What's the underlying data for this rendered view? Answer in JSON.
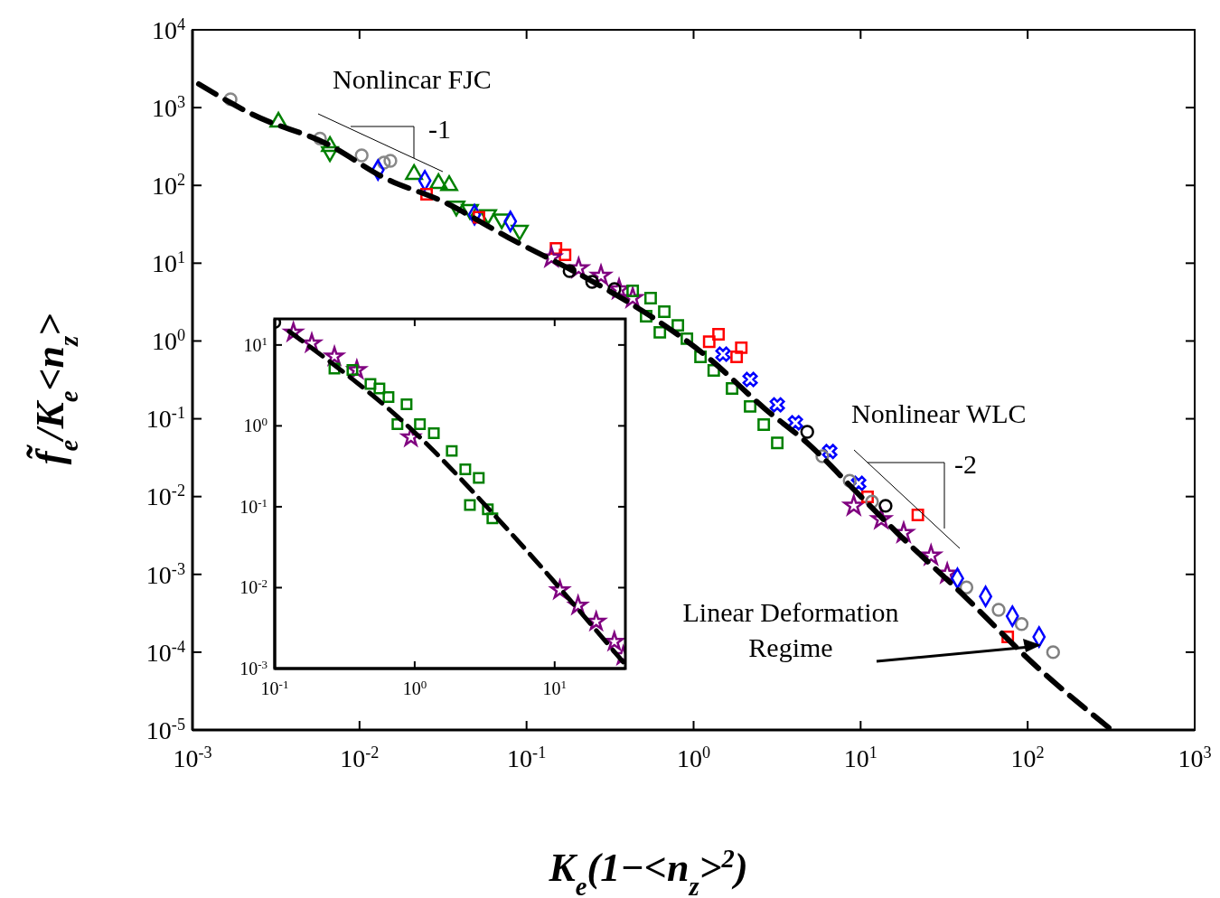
{
  "chart_data": [
    {
      "type": "scatter",
      "log": "xy",
      "xlabel": "K$_{e}$(1−<n$_{z}$>$^{2}$)",
      "ylabel": "f̃$_{e}$/K$_{e}$<n$_{z}$>",
      "xlim": [
        0.001,
        1000
      ],
      "ylim": [
        1e-05,
        10000
      ],
      "xticks": [
        {
          "value": 0.001,
          "label": "10$^{-3}$"
        },
        {
          "value": 0.01,
          "label": "10$^{-2}$"
        },
        {
          "value": 0.1,
          "label": "10$^{-1}$"
        },
        {
          "value": 1,
          "label": "10$^{0}$"
        },
        {
          "value": 10,
          "label": "10$^{1}$"
        },
        {
          "value": 100,
          "label": "10$^{2}$"
        },
        {
          "value": 1000,
          "label": "10$^{3}$"
        }
      ],
      "yticks": [
        {
          "value": 1e-05,
          "label": "10$^{-5}$"
        },
        {
          "value": 0.0001,
          "label": "10$^{-4}$"
        },
        {
          "value": 0.001,
          "label": "10$^{-3}$"
        },
        {
          "value": 0.01,
          "label": "10$^{-2}$"
        },
        {
          "value": 0.1,
          "label": "10$^{-1}$"
        },
        {
          "value": 1,
          "label": "10$^{0}$"
        },
        {
          "value": 10,
          "label": "10$^{1}$"
        },
        {
          "value": 100,
          "label": "10$^{2}$"
        },
        {
          "value": 1000,
          "label": "10$^{3}$"
        },
        {
          "value": 10000,
          "label": "10$^{4}$"
        }
      ],
      "annotations": [
        "Nonlincar FJC",
        "-1",
        "Nonlinear WLC",
        "-2",
        "Linear Deformation Regime"
      ],
      "series": [
        {
          "color": "#888888",
          "marker": "circle",
          "x": [
            0.00169,
            0.0058,
            0.0103,
            0.014,
            0.0153
          ],
          "values": [
            1280,
            400,
            243,
            196,
            207
          ]
        },
        {
          "color": "#008000",
          "marker": "triangle",
          "x": [
            0.00327,
            0.00665,
            0.0212,
            0.0297,
            0.0344
          ],
          "values": [
            653,
            318,
            139,
            106,
            100
          ]
        },
        {
          "color": "#008000",
          "marker": "triangle-down",
          "x": [
            0.00665,
            0.038,
            0.0458,
            0.0588,
            0.071,
            0.091
          ],
          "values": [
            270,
            54,
            49,
            42,
            37,
            26.4
          ]
        },
        {
          "color": "#0000ff",
          "marker": "diamond",
          "x": [
            0.0129,
            0.0246,
            0.0488,
            0.08
          ],
          "values": [
            158,
            115,
            42,
            34.5
          ]
        },
        {
          "color": "#ff0000",
          "marker": "square",
          "x": [
            0.0252,
            0.0519,
            0.15,
            0.17,
            1.41,
            1.93
          ],
          "values": [
            77,
            39,
            15.5,
            12.8,
            1.22,
            0.82
          ]
        },
        {
          "color": "#800080",
          "marker": "star",
          "x": [
            0.141,
            0.205,
            0.279,
            0.358,
            0.432,
            9.1,
            13.3,
            18.1,
            26.4,
            33
          ],
          "values": [
            11.8,
            8.6,
            6.9,
            4.6,
            3.56,
            0.0076,
            0.0051,
            0.0034,
            0.00174,
            0.00102
          ]
        },
        {
          "color": "#000000",
          "marker": "circle",
          "x": [
            0.181,
            0.247,
            0.336,
            4.79,
            14.1
          ],
          "values": [
            7.9,
            5.75,
            4.65,
            0.068,
            0.0076
          ]
        },
        {
          "color": "#008000",
          "marker": "square",
          "x": [
            0.432,
            0.553,
            0.668,
            0.805,
            0.912,
            1.1,
            1.32,
            1.7,
            2.18,
            2.63,
            3.17,
            0.52,
            0.628
          ],
          "values": [
            4.4,
            3.55,
            2.38,
            1.59,
            1.07,
            0.625,
            0.418,
            0.245,
            0.144,
            0.084,
            0.049,
            2.08,
            1.29
          ]
        },
        {
          "color": "#0000ff",
          "marker": "cross",
          "x": [
            1.5,
            2.18,
            3.17,
            4.07,
            6.53,
            9.73
          ],
          "values": [
            0.676,
            0.32,
            0.151,
            0.089,
            0.038,
            0.0148
          ]
        },
        {
          "color": "#ff0000",
          "marker": "square",
          "x": [
            1.24,
            1.81,
            11,
            22,
            76
          ],
          "values": [
            0.98,
            0.625,
            0.0099,
            0.0058,
            0.000157
          ]
        },
        {
          "color": "#808080",
          "marker": "circle",
          "x": [
            5.9,
            8.6,
            11.7,
            43,
            67,
            92,
            142
          ],
          "values": [
            0.033,
            0.016,
            0.0086,
            0.00068,
            0.00035,
            0.00023,
            0.0001
          ]
        },
        {
          "color": "#0000ff",
          "marker": "diamond",
          "x": [
            38,
            56,
            81,
            117
          ],
          "values": [
            0.00089,
            0.00052,
            0.00029,
            0.000157
          ]
        },
        {
          "type": "line",
          "color": "#000000",
          "marker": "none",
          "line_style": "dashed",
          "x": [
            0.00109,
            0.00231,
            0.0065,
            0.0142,
            0.0316,
            0.078,
            0.24,
            0.554,
            1.17,
            2.7,
            4.79,
            9.73,
            16.6,
            36.9,
            117,
            318
          ],
          "values": [
            2010,
            809,
            335,
            124,
            62,
            21.3,
            6.07,
            2.08,
            0.66,
            0.132,
            0.049,
            0.0107,
            0.0034,
            0.00068,
            6.1e-05,
            1e-05
          ]
        }
      ]
    },
    {
      "type": "scatter",
      "log": "xy",
      "xlim": [
        0.1,
        32
      ],
      "ylim": [
        0.001,
        21
      ],
      "xticks": [
        {
          "value": 0.1,
          "label": "10$^{-1}$"
        },
        {
          "value": 1,
          "label": "10$^{0}$"
        },
        {
          "value": 10,
          "label": "10$^{1}$"
        }
      ],
      "yticks": [
        {
          "value": 0.001,
          "label": "10$^{-3}$"
        },
        {
          "value": 0.01,
          "label": "10$^{-2}$"
        },
        {
          "value": 0.1,
          "label": "10$^{-1}$"
        },
        {
          "value": 1,
          "label": "10$^{0}$"
        },
        {
          "value": 10,
          "label": "10$^{1}$"
        }
      ],
      "series": [
        {
          "color": "#800080",
          "marker": "star",
          "x": [
            0.136,
            0.184,
            0.267,
            0.386,
            0.94,
            10.9,
            14.7,
            19.8,
            26.7,
            30.9
          ],
          "values": [
            14.3,
            10.5,
            7.2,
            4.9,
            0.72,
            0.0093,
            0.006,
            0.0038,
            0.00215,
            0.00143
          ]
        },
        {
          "color": "#008000",
          "marker": "square",
          "x": [
            0.267,
            0.359,
            0.483,
            0.65,
            0.875,
            1.09,
            1.37,
            1.84,
            2.3,
            2.87,
            2.48,
            3.33,
            3.59,
            0.753,
            0.56
          ],
          "values": [
            5.1,
            4.9,
            3.3,
            2.27,
            1.85,
            1.05,
            0.81,
            0.49,
            0.29,
            0.227,
            0.105,
            0.093,
            0.072,
            1.05,
            2.9
          ]
        },
        {
          "color": "#000000",
          "marker": "circle",
          "x": [
            0.1
          ],
          "values": [
            19
          ]
        },
        {
          "type": "line",
          "color": "#000000",
          "marker": "none",
          "line_style": "dashed",
          "x": [
            0.127,
            1.06,
            4.29,
            30.9
          ],
          "values": [
            14.7,
            0.755,
            0.06,
            0.0012
          ]
        }
      ]
    }
  ]
}
